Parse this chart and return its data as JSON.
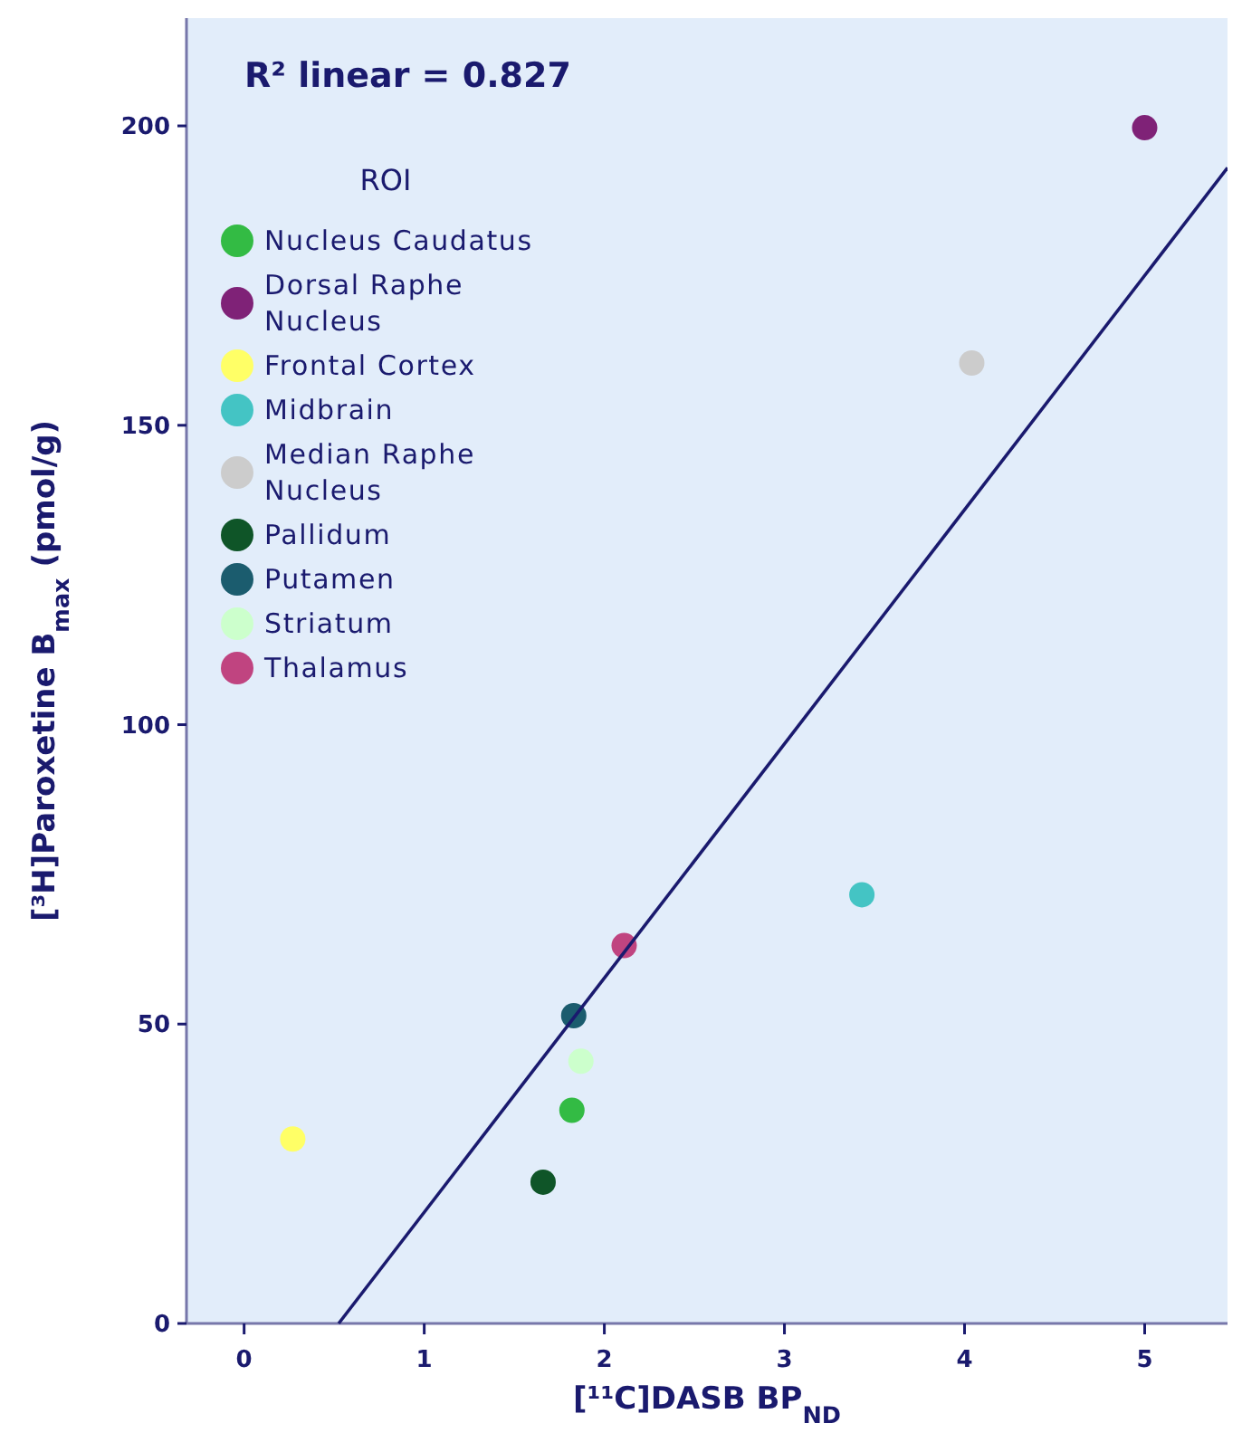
{
  "chart_data": {
    "type": "scatter",
    "xlabel": "[¹¹C]DASB BP$_{ND}$",
    "ylabel": "[³H]Paroxetine B$_{max}$ (pmol/g)",
    "legend_title": "ROI",
    "annotations": [
      "R² linear = 0.827"
    ],
    "xlim": [
      -0.32,
      5.46
    ],
    "xticks": [
      0,
      1,
      2,
      3,
      4,
      5
    ],
    "ylim": [
      0,
      218
    ],
    "yticks": [
      0,
      50,
      100,
      150,
      200
    ],
    "grid": false,
    "legend": "top left",
    "marker": "circle",
    "series": [
      {
        "name": "Nucleus Caudatus",
        "color": "#33bb44",
        "x": [
          1.82
        ],
        "values": [
          35.6
        ]
      },
      {
        "name": "Dorsal Raphe Nucleus",
        "color": "#7f2277",
        "x": [
          5.0
        ],
        "values": [
          199.7
        ]
      },
      {
        "name": "Frontal Cortex",
        "color": "#ffff66",
        "x": [
          0.27
        ],
        "values": [
          30.8
        ]
      },
      {
        "name": "Midbrain",
        "color": "#44c4c4",
        "x": [
          3.43
        ],
        "values": [
          71.6
        ]
      },
      {
        "name": "Median Raphe Nucleus",
        "color": "#cccccc",
        "x": [
          4.04
        ],
        "values": [
          160.4
        ]
      },
      {
        "name": "Pallidum",
        "color": "#0f5528",
        "x": [
          1.66
        ],
        "values": [
          23.6
        ]
      },
      {
        "name": "Putamen",
        "color": "#1b5c6e",
        "x": [
          1.83
        ],
        "values": [
          51.4
        ]
      },
      {
        "name": "Striatum",
        "color": "#ccffcc",
        "x": [
          1.87
        ],
        "values": [
          43.8
        ]
      },
      {
        "name": "Thalamus",
        "color": "#c04480",
        "x": [
          2.11
        ],
        "values": [
          63.1
        ]
      },
      {
        "type": "line",
        "color": "#1a1a6e",
        "x": [
          0.525,
          5.46
        ],
        "values": [
          0,
          193.0
        ],
        "line_style": "solid",
        "marker": "none"
      }
    ]
  }
}
